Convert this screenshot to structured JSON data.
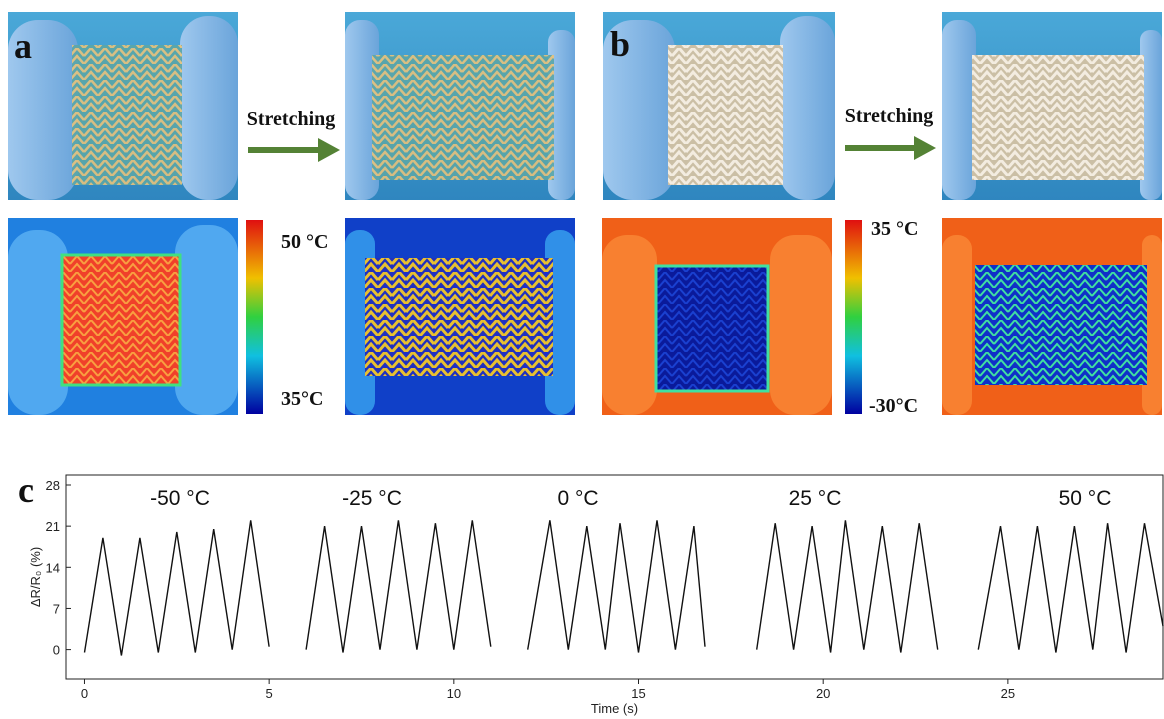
{
  "panels": {
    "a": {
      "label": "a",
      "arrow_text": "Stretching",
      "colorbar_max": "50 °C",
      "colorbar_min": "35°C"
    },
    "b": {
      "label": "b",
      "arrow_text": "Stretching",
      "colorbar_max": "35 °C",
      "colorbar_min": "-30°C"
    },
    "c": {
      "label": "c"
    }
  },
  "chart_data": {
    "type": "line",
    "xlabel": "Time (s)",
    "ylabel": "ΔR/R₀ (%)",
    "annotations": [
      "-50 °C",
      "-25 °C",
      "0 °C",
      "25 °C",
      "50 °C"
    ],
    "x": [
      0,
      0.5,
      1,
      1.5,
      2,
      2.5,
      3,
      3.5,
      4,
      4.5,
      5,
      null,
      6,
      6.5,
      7,
      7.5,
      8,
      8.5,
      9,
      9.5,
      10,
      10.5,
      11,
      null,
      12,
      12.6,
      13.1,
      13.6,
      14.1,
      14.5,
      15,
      15.5,
      16,
      16.5,
      16.8,
      null,
      18.2,
      18.7,
      19.2,
      19.7,
      20.2,
      20.6,
      21.1,
      21.6,
      22.1,
      22.6,
      23.1,
      null,
      24.2,
      24.8,
      25.3,
      25.8,
      26.3,
      26.8,
      27.3,
      27.7,
      28.2,
      28.7,
      29.2
    ],
    "series": [
      {
        "color": "#111111",
        "values": [
          -0.5,
          19,
          -1,
          19,
          -0.5,
          20,
          -0.5,
          20.5,
          0,
          22,
          0.5,
          null,
          0,
          21,
          -0.5,
          21,
          0,
          22,
          0,
          21.5,
          0,
          22,
          0.5,
          null,
          0,
          22,
          0,
          21,
          0,
          21.5,
          -0.5,
          22,
          0,
          21,
          0.5,
          null,
          0,
          21.5,
          0,
          21,
          -0.5,
          22,
          0,
          21,
          -0.5,
          21.5,
          0,
          null,
          0,
          21,
          0,
          21,
          -0.5,
          21,
          0,
          21.5,
          -0.5,
          21.5,
          4
        ]
      }
    ],
    "xlim": [
      -0.5,
      29.2
    ],
    "ylim": [
      -5,
      29.7
    ],
    "xticks": [
      0,
      5,
      10,
      15,
      20,
      25
    ],
    "yticks": [
      0,
      7,
      14,
      21,
      28
    ],
    "grid": false
  }
}
